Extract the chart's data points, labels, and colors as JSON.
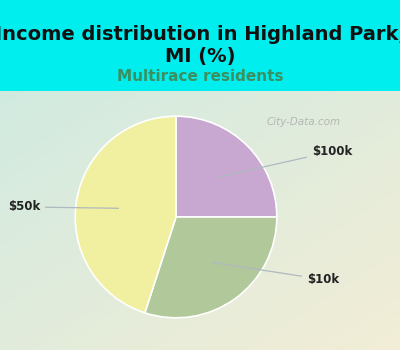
{
  "title": "Income distribution in Highland Park,\nMI (%)",
  "subtitle": "Multirace residents",
  "slices": [
    {
      "label": "$100k",
      "value": 25,
      "color": "#c8a8d0"
    },
    {
      "label": "$10k",
      "value": 30,
      "color": "#b0c89a"
    },
    {
      "label": "$50k",
      "value": 45,
      "color": "#f0f0a0"
    }
  ],
  "bg_top_color": "#00eeee",
  "title_fontsize": 14,
  "subtitle_fontsize": 11,
  "subtitle_color": "#3a9060",
  "watermark": "City-Data.com",
  "wedge_linewidth": 1.2,
  "wedge_edgecolor": "#ffffff",
  "startangle": 90,
  "label_fontsize": 8.5,
  "label_color": "#222222"
}
